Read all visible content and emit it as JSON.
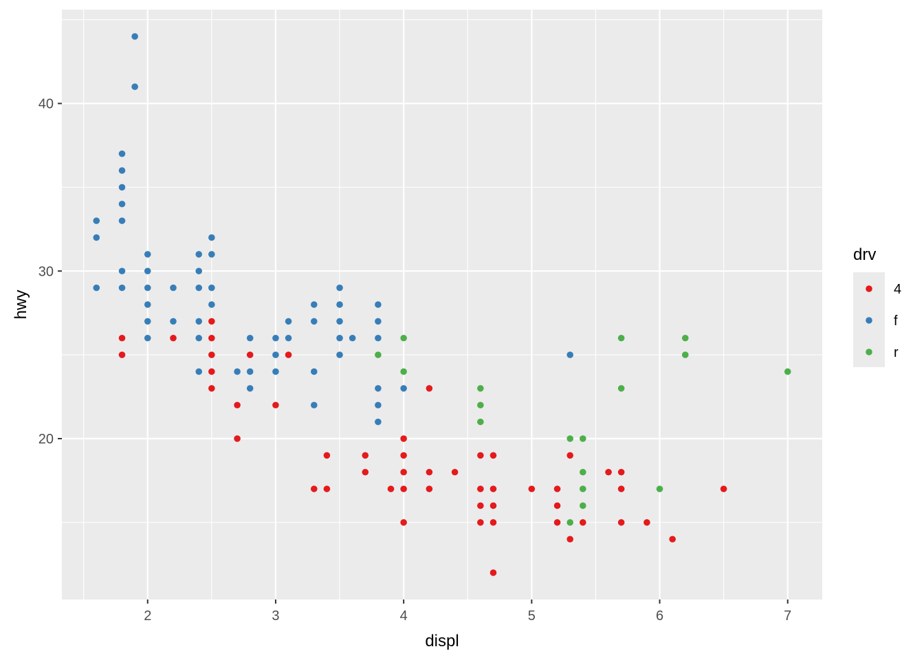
{
  "chart_data": {
    "type": "scatter",
    "xlabel": "displ",
    "ylabel": "hwy",
    "xlim": [
      1.33,
      7.27
    ],
    "ylim": [
      10.4,
      45.6
    ],
    "x_ticks": [
      2,
      3,
      4,
      5,
      6,
      7
    ],
    "y_ticks": [
      20,
      30,
      40
    ],
    "grid": true,
    "legend": {
      "title": "drv",
      "placement": "right",
      "entries": [
        "4",
        "f",
        "r"
      ]
    },
    "colors": {
      "4": "#E41A1C",
      "f": "#377EB8",
      "r": "#4DAF4A",
      "panel": "#EBEBEB",
      "grid": "#FFFFFF"
    },
    "series": [
      {
        "name": "4",
        "points": [
          [
            1.8,
            26
          ],
          [
            1.8,
            25
          ],
          [
            2.2,
            26
          ],
          [
            2.5,
            27
          ],
          [
            2.5,
            26
          ],
          [
            2.5,
            25
          ],
          [
            2.5,
            24
          ],
          [
            2.5,
            23
          ],
          [
            2.7,
            22
          ],
          [
            2.7,
            20
          ],
          [
            2.8,
            25
          ],
          [
            3.0,
            22
          ],
          [
            3.1,
            25
          ],
          [
            3.3,
            17
          ],
          [
            3.4,
            19
          ],
          [
            3.4,
            17
          ],
          [
            3.7,
            19
          ],
          [
            3.7,
            18
          ],
          [
            3.9,
            17
          ],
          [
            4.0,
            20
          ],
          [
            4.0,
            19
          ],
          [
            4.0,
            18
          ],
          [
            4.0,
            17
          ],
          [
            4.0,
            15
          ],
          [
            4.2,
            23
          ],
          [
            4.2,
            18
          ],
          [
            4.2,
            17
          ],
          [
            4.4,
            18
          ],
          [
            4.6,
            19
          ],
          [
            4.6,
            17
          ],
          [
            4.6,
            16
          ],
          [
            4.6,
            15
          ],
          [
            4.7,
            19
          ],
          [
            4.7,
            17
          ],
          [
            4.7,
            16
          ],
          [
            4.7,
            15
          ],
          [
            4.7,
            12
          ],
          [
            5.0,
            17
          ],
          [
            5.2,
            17
          ],
          [
            5.2,
            16
          ],
          [
            5.2,
            15
          ],
          [
            5.3,
            19
          ],
          [
            5.3,
            14
          ],
          [
            5.4,
            15
          ],
          [
            5.6,
            18
          ],
          [
            5.7,
            18
          ],
          [
            5.7,
            17
          ],
          [
            5.7,
            15
          ],
          [
            5.9,
            15
          ],
          [
            6.1,
            14
          ],
          [
            6.5,
            17
          ]
        ]
      },
      {
        "name": "f",
        "points": [
          [
            1.6,
            33
          ],
          [
            1.6,
            32
          ],
          [
            1.6,
            29
          ],
          [
            1.8,
            37
          ],
          [
            1.8,
            36
          ],
          [
            1.8,
            35
          ],
          [
            1.8,
            34
          ],
          [
            1.8,
            33
          ],
          [
            1.8,
            30
          ],
          [
            1.8,
            29
          ],
          [
            1.9,
            44
          ],
          [
            1.9,
            41
          ],
          [
            2.0,
            31
          ],
          [
            2.0,
            30
          ],
          [
            2.0,
            29
          ],
          [
            2.0,
            28
          ],
          [
            2.0,
            27
          ],
          [
            2.0,
            26
          ],
          [
            2.2,
            29
          ],
          [
            2.2,
            27
          ],
          [
            2.4,
            31
          ],
          [
            2.4,
            30
          ],
          [
            2.4,
            29
          ],
          [
            2.4,
            27
          ],
          [
            2.4,
            26
          ],
          [
            2.4,
            24
          ],
          [
            2.5,
            32
          ],
          [
            2.5,
            31
          ],
          [
            2.5,
            29
          ],
          [
            2.5,
            28
          ],
          [
            2.7,
            24
          ],
          [
            2.8,
            26
          ],
          [
            2.8,
            24
          ],
          [
            2.8,
            23
          ],
          [
            3.0,
            26
          ],
          [
            3.0,
            25
          ],
          [
            3.0,
            24
          ],
          [
            3.1,
            27
          ],
          [
            3.1,
            26
          ],
          [
            3.3,
            28
          ],
          [
            3.3,
            27
          ],
          [
            3.3,
            24
          ],
          [
            3.3,
            22
          ],
          [
            3.5,
            29
          ],
          [
            3.5,
            28
          ],
          [
            3.5,
            27
          ],
          [
            3.5,
            26
          ],
          [
            3.5,
            25
          ],
          [
            3.6,
            26
          ],
          [
            3.8,
            28
          ],
          [
            3.8,
            27
          ],
          [
            3.8,
            26
          ],
          [
            3.8,
            23
          ],
          [
            3.8,
            22
          ],
          [
            3.8,
            21
          ],
          [
            4.0,
            23
          ],
          [
            5.3,
            25
          ]
        ]
      },
      {
        "name": "r",
        "points": [
          [
            3.8,
            25
          ],
          [
            4.0,
            26
          ],
          [
            4.0,
            24
          ],
          [
            4.6,
            23
          ],
          [
            4.6,
            22
          ],
          [
            4.6,
            21
          ],
          [
            5.3,
            20
          ],
          [
            5.3,
            15
          ],
          [
            5.4,
            20
          ],
          [
            5.4,
            18
          ],
          [
            5.4,
            17
          ],
          [
            5.4,
            16
          ],
          [
            5.7,
            26
          ],
          [
            5.7,
            23
          ],
          [
            6.0,
            17
          ],
          [
            6.2,
            26
          ],
          [
            6.2,
            25
          ],
          [
            7.0,
            24
          ]
        ]
      }
    ]
  }
}
